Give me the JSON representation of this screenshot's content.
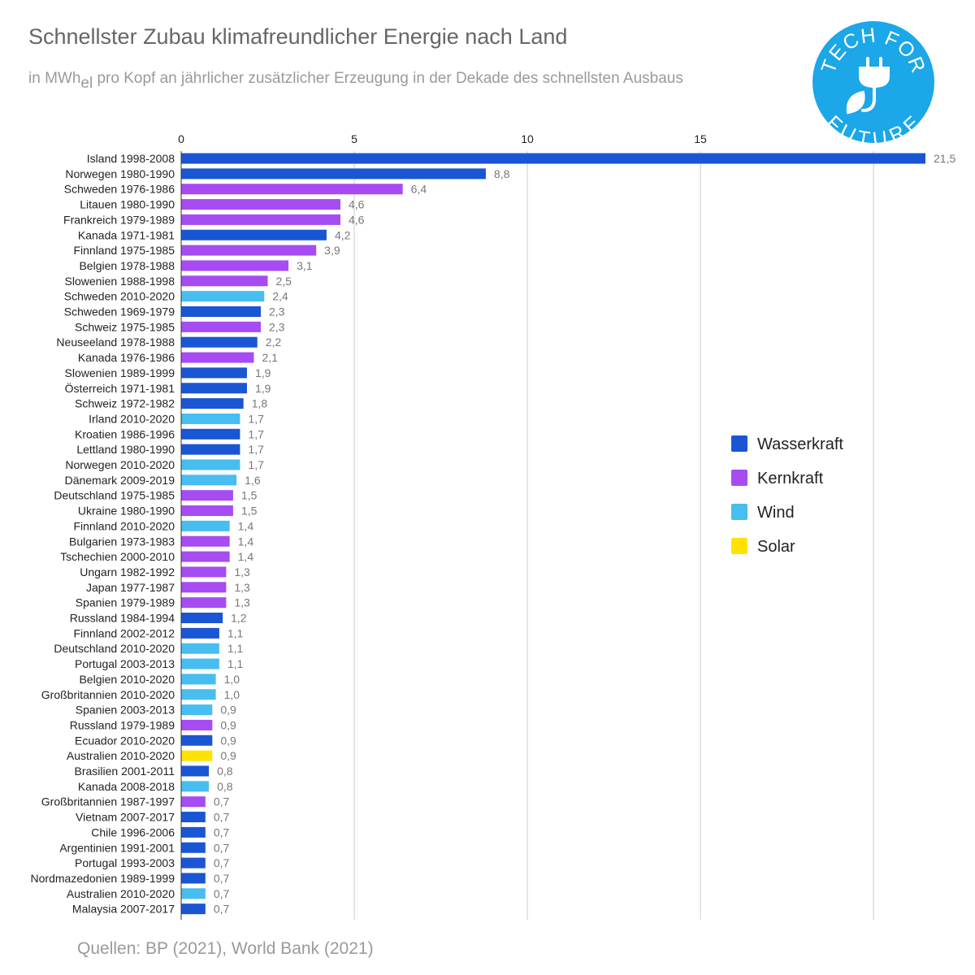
{
  "title": "Schnellster Zubau klimafreundlicher Energie nach Land",
  "subtitle": {
    "prefix": "in MWh",
    "subscript": "el",
    "suffix": " pro Kopf an jährlicher zusätzlicher Erzeugung in der Dekade des schnellsten Ausbaus"
  },
  "source": "Quellen: BP (2021), World Bank (2021)",
  "logo": {
    "text_top": "TECH FOR",
    "text_bottom": "FUTURE",
    "icon": "plug-leaf-icon",
    "color": "#1ba7e8"
  },
  "colors": {
    "Wasserkraft": "#1a55d4",
    "Kernkraft": "#a64cf2",
    "Wind": "#47bdf0",
    "Solar": "#ffe200"
  },
  "chart_data": {
    "type": "bar",
    "orientation": "horizontal",
    "title": "Schnellster Zubau klimafreundlicher Energie nach Land",
    "xlim": [
      0,
      21.5
    ],
    "x_ticks": [
      0,
      5,
      10,
      15
    ],
    "x_tick_labels": [
      "0",
      "5",
      "10",
      "15"
    ],
    "grid": true,
    "legend": {
      "position": "right",
      "entries": [
        "Wasserkraft",
        "Kernkraft",
        "Wind",
        "Solar"
      ]
    },
    "bars": [
      {
        "label": "Island 1998-2008",
        "value": 21.5,
        "value_label": "21,5",
        "type": "Wasserkraft"
      },
      {
        "label": "Norwegen 1980-1990",
        "value": 8.8,
        "value_label": "8,8",
        "type": "Wasserkraft"
      },
      {
        "label": "Schweden 1976-1986",
        "value": 6.4,
        "value_label": "6,4",
        "type": "Kernkraft"
      },
      {
        "label": "Litauen 1980-1990",
        "value": 4.6,
        "value_label": "4,6",
        "type": "Kernkraft"
      },
      {
        "label": "Frankreich 1979-1989",
        "value": 4.6,
        "value_label": "4,6",
        "type": "Kernkraft"
      },
      {
        "label": "Kanada 1971-1981",
        "value": 4.2,
        "value_label": "4,2",
        "type": "Wasserkraft"
      },
      {
        "label": "Finnland 1975-1985",
        "value": 3.9,
        "value_label": "3,9",
        "type": "Kernkraft"
      },
      {
        "label": "Belgien 1978-1988",
        "value": 3.1,
        "value_label": "3,1",
        "type": "Kernkraft"
      },
      {
        "label": "Slowenien 1988-1998",
        "value": 2.5,
        "value_label": "2,5",
        "type": "Kernkraft"
      },
      {
        "label": "Schweden 2010-2020",
        "value": 2.4,
        "value_label": "2,4",
        "type": "Wind"
      },
      {
        "label": "Schweden 1969-1979",
        "value": 2.3,
        "value_label": "2,3",
        "type": "Wasserkraft"
      },
      {
        "label": "Schweiz 1975-1985",
        "value": 2.3,
        "value_label": "2,3",
        "type": "Kernkraft"
      },
      {
        "label": "Neuseeland 1978-1988",
        "value": 2.2,
        "value_label": "2,2",
        "type": "Wasserkraft"
      },
      {
        "label": "Kanada 1976-1986",
        "value": 2.1,
        "value_label": "2,1",
        "type": "Kernkraft"
      },
      {
        "label": "Slowenien 1989-1999",
        "value": 1.9,
        "value_label": "1,9",
        "type": "Wasserkraft"
      },
      {
        "label": "Österreich 1971-1981",
        "value": 1.9,
        "value_label": "1,9",
        "type": "Wasserkraft"
      },
      {
        "label": "Schweiz 1972-1982",
        "value": 1.8,
        "value_label": "1,8",
        "type": "Wasserkraft"
      },
      {
        "label": "Irland 2010-2020",
        "value": 1.7,
        "value_label": "1,7",
        "type": "Wind"
      },
      {
        "label": "Kroatien 1986-1996",
        "value": 1.7,
        "value_label": "1,7",
        "type": "Wasserkraft"
      },
      {
        "label": "Lettland 1980-1990",
        "value": 1.7,
        "value_label": "1,7",
        "type": "Wasserkraft"
      },
      {
        "label": "Norwegen 2010-2020",
        "value": 1.7,
        "value_label": "1,7",
        "type": "Wind"
      },
      {
        "label": "Dänemark 2009-2019",
        "value": 1.6,
        "value_label": "1,6",
        "type": "Wind"
      },
      {
        "label": "Deutschland 1975-1985",
        "value": 1.5,
        "value_label": "1,5",
        "type": "Kernkraft"
      },
      {
        "label": "Ukraine 1980-1990",
        "value": 1.5,
        "value_label": "1,5",
        "type": "Kernkraft"
      },
      {
        "label": "Finnland 2010-2020",
        "value": 1.4,
        "value_label": "1,4",
        "type": "Wind"
      },
      {
        "label": "Bulgarien 1973-1983",
        "value": 1.4,
        "value_label": "1,4",
        "type": "Kernkraft"
      },
      {
        "label": "Tschechien 2000-2010",
        "value": 1.4,
        "value_label": "1,4",
        "type": "Kernkraft"
      },
      {
        "label": "Ungarn 1982-1992",
        "value": 1.3,
        "value_label": "1,3",
        "type": "Kernkraft"
      },
      {
        "label": "Japan 1977-1987",
        "value": 1.3,
        "value_label": "1,3",
        "type": "Kernkraft"
      },
      {
        "label": "Spanien 1979-1989",
        "value": 1.3,
        "value_label": "1,3",
        "type": "Kernkraft"
      },
      {
        "label": "Russland 1984-1994",
        "value": 1.2,
        "value_label": "1,2",
        "type": "Wasserkraft"
      },
      {
        "label": "Finnland 2002-2012",
        "value": 1.1,
        "value_label": "1,1",
        "type": "Wasserkraft"
      },
      {
        "label": "Deutschland 2010-2020",
        "value": 1.1,
        "value_label": "1,1",
        "type": "Wind"
      },
      {
        "label": "Portugal 2003-2013",
        "value": 1.1,
        "value_label": "1,1",
        "type": "Wind"
      },
      {
        "label": "Belgien 2010-2020",
        "value": 1.0,
        "value_label": "1,0",
        "type": "Wind"
      },
      {
        "label": "Großbritannien 2010-2020",
        "value": 1.0,
        "value_label": "1,0",
        "type": "Wind"
      },
      {
        "label": "Spanien 2003-2013",
        "value": 0.9,
        "value_label": "0,9",
        "type": "Wind"
      },
      {
        "label": "Russland 1979-1989",
        "value": 0.9,
        "value_label": "0,9",
        "type": "Kernkraft"
      },
      {
        "label": "Ecuador 2010-2020",
        "value": 0.9,
        "value_label": "0,9",
        "type": "Wasserkraft"
      },
      {
        "label": "Australien 2010-2020",
        "value": 0.9,
        "value_label": "0,9",
        "type": "Solar"
      },
      {
        "label": "Brasilien 2001-2011",
        "value": 0.8,
        "value_label": "0,8",
        "type": "Wasserkraft"
      },
      {
        "label": "Kanada 2008-2018",
        "value": 0.8,
        "value_label": "0,8",
        "type": "Wind"
      },
      {
        "label": "Großbritannien 1987-1997",
        "value": 0.7,
        "value_label": "0,7",
        "type": "Kernkraft"
      },
      {
        "label": "Vietnam 2007-2017",
        "value": 0.7,
        "value_label": "0,7",
        "type": "Wasserkraft"
      },
      {
        "label": "Chile 1996-2006",
        "value": 0.7,
        "value_label": "0,7",
        "type": "Wasserkraft"
      },
      {
        "label": "Argentinien 1991-2001",
        "value": 0.7,
        "value_label": "0,7",
        "type": "Wasserkraft"
      },
      {
        "label": "Portugal 1993-2003",
        "value": 0.7,
        "value_label": "0,7",
        "type": "Wasserkraft"
      },
      {
        "label": "Nordmazedonien 1989-1999",
        "value": 0.7,
        "value_label": "0,7",
        "type": "Wasserkraft"
      },
      {
        "label": "Australien 2010-2020",
        "value": 0.7,
        "value_label": "0,7",
        "type": "Wind"
      },
      {
        "label": "Malaysia 2007-2017",
        "value": 0.7,
        "value_label": "0,7",
        "type": "Wasserkraft"
      }
    ]
  }
}
